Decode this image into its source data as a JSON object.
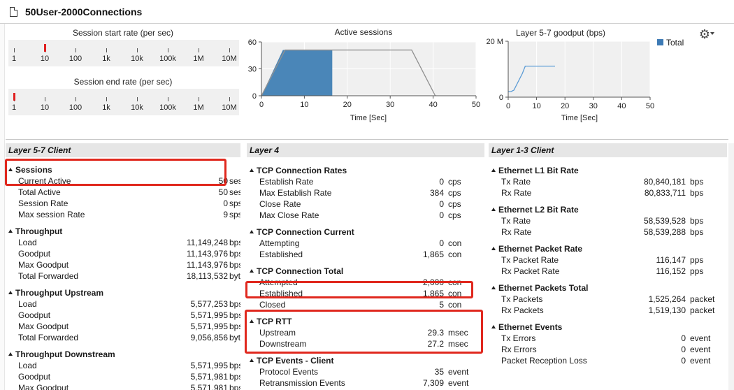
{
  "window": {
    "title": "50User-2000Connections"
  },
  "top_charts": {
    "start_rate": {
      "title": "Session start rate (per sec)",
      "ticks": [
        "1",
        "10",
        "100",
        "1k",
        "10k",
        "100k",
        "1M",
        "10M"
      ],
      "marker_at": 10
    },
    "end_rate": {
      "title": "Session end rate (per sec)",
      "ticks": [
        "1",
        "10",
        "100",
        "1k",
        "10k",
        "100k",
        "1M",
        "10M"
      ],
      "marker_at": 1
    }
  },
  "chart_data": [
    {
      "type": "area",
      "title": "Active sessions",
      "xlabel": "Time [Sec]",
      "ylabel": "",
      "xlim": [
        0,
        50
      ],
      "ylim": [
        0,
        60
      ],
      "x_ticks": [
        0,
        10,
        20,
        30,
        40,
        50
      ],
      "y_ticks": [
        0,
        30,
        60
      ],
      "outline": {
        "x": [
          0,
          5.5,
          35,
          40.5
        ],
        "y": [
          0,
          51,
          51,
          0
        ]
      },
      "filled": {
        "x": [
          0,
          5,
          16.5,
          16.5
        ],
        "y": [
          0,
          51,
          51,
          0
        ]
      },
      "grid": true,
      "colors": {
        "fill": "#4a86b8",
        "line": "#909090"
      }
    },
    {
      "type": "line",
      "title": "Layer 5-7 goodput (bps)",
      "xlabel": "Time [Sec]",
      "ylabel": "",
      "xlim": [
        0,
        50
      ],
      "ylim": [
        0,
        20
      ],
      "x_ticks": [
        0,
        10,
        20,
        30,
        40,
        50
      ],
      "y_ticks": [
        0,
        20
      ],
      "y_tick_labels": [
        "0",
        "20 M"
      ],
      "series": [
        {
          "name": "Total",
          "x": [
            0,
            1,
            2,
            3,
            4,
            5,
            6,
            7,
            8,
            9,
            10,
            11,
            12,
            13,
            14,
            15,
            16,
            16.5
          ],
          "y": [
            2.0,
            2.0,
            2.5,
            4.5,
            6.5,
            8.5,
            11.1,
            11.1,
            11.1,
            11.1,
            11.1,
            11.1,
            11.1,
            11.1,
            11.1,
            11.1,
            11.1,
            11.1
          ]
        }
      ],
      "legend": "top-right",
      "grid": true,
      "colors": {
        "line": "#5b9bd5",
        "legend": "#3d7ab5"
      }
    }
  ],
  "panels": {
    "l57": {
      "title": "Layer 5-7 Client",
      "groups": [
        {
          "title": "Sessions",
          "rows": [
            {
              "label": "Current Active",
              "value": "50",
              "unit": "sess"
            },
            {
              "label": "Total Active",
              "value": "50",
              "unit": "sess"
            },
            {
              "label": "Session Rate",
              "value": "0",
              "unit": "sps"
            },
            {
              "label": "Max session Rate",
              "value": "9",
              "unit": "sps"
            }
          ]
        },
        {
          "title": "Throughput",
          "rows": [
            {
              "label": "Load",
              "value": "11,149,248",
              "unit": "bps"
            },
            {
              "label": "Goodput",
              "value": "11,143,976",
              "unit": "bps"
            },
            {
              "label": "Max Goodput",
              "value": "11,143,976",
              "unit": "bps"
            },
            {
              "label": "Total Forwarded",
              "value": "18,113,532",
              "unit": "byte"
            }
          ]
        },
        {
          "title": "Throughput Upstream",
          "rows": [
            {
              "label": "Load",
              "value": "5,577,253",
              "unit": "bps"
            },
            {
              "label": "Goodput",
              "value": "5,571,995",
              "unit": "bps"
            },
            {
              "label": "Max Goodput",
              "value": "5,571,995",
              "unit": "bps"
            },
            {
              "label": "Total Forwarded",
              "value": "9,056,856",
              "unit": "byte"
            }
          ]
        },
        {
          "title": "Throughput Downstream",
          "rows": [
            {
              "label": "Load",
              "value": "5,571,995",
              "unit": "bps"
            },
            {
              "label": "Goodput",
              "value": "5,571,981",
              "unit": "bps"
            },
            {
              "label": "Max Goodput",
              "value": "5,571,981",
              "unit": "bps"
            }
          ]
        }
      ]
    },
    "l4": {
      "title": "Layer 4",
      "groups": [
        {
          "title": "TCP Connection Rates",
          "rows": [
            {
              "label": "Establish Rate",
              "value": "0",
              "unit": "cps"
            },
            {
              "label": "Max Establish Rate",
              "value": "384",
              "unit": "cps"
            },
            {
              "label": "Close Rate",
              "value": "0",
              "unit": "cps"
            },
            {
              "label": "Max Close Rate",
              "value": "0",
              "unit": "cps"
            }
          ]
        },
        {
          "title": "TCP Connection Current",
          "rows": [
            {
              "label": "Attempting",
              "value": "0",
              "unit": "con"
            },
            {
              "label": "Established",
              "value": "1,865",
              "unit": "con"
            }
          ]
        },
        {
          "title": "TCP Connection Total",
          "rows": [
            {
              "label": "Attempted",
              "value": "2,000",
              "unit": "con"
            },
            {
              "label": "Established",
              "value": "1,865",
              "unit": "con"
            },
            {
              "label": "Closed",
              "value": "5",
              "unit": "con"
            }
          ]
        },
        {
          "title": "TCP RTT",
          "rows": [
            {
              "label": "Upstream",
              "value": "29.3",
              "unit": "msec"
            },
            {
              "label": "Downstream",
              "value": "27.2",
              "unit": "msec"
            }
          ]
        },
        {
          "title": "TCP Events - Client",
          "rows": [
            {
              "label": "Protocol Events",
              "value": "35",
              "unit": "event"
            },
            {
              "label": "Retransmission Events",
              "value": "7,309",
              "unit": "event"
            }
          ]
        }
      ]
    },
    "l13": {
      "title": "Layer 1-3 Client",
      "groups": [
        {
          "title": "Ethernet L1 Bit Rate",
          "rows": [
            {
              "label": "Tx Rate",
              "value": "80,840,181",
              "unit": "bps"
            },
            {
              "label": "Rx Rate",
              "value": "80,833,711",
              "unit": "bps"
            }
          ]
        },
        {
          "title": "Ethernet L2 Bit Rate",
          "rows": [
            {
              "label": "Tx Rate",
              "value": "58,539,528",
              "unit": "bps"
            },
            {
              "label": "Rx Rate",
              "value": "58,539,288",
              "unit": "bps"
            }
          ]
        },
        {
          "title": "Ethernet Packet Rate",
          "rows": [
            {
              "label": "Tx Packet Rate",
              "value": "116,147",
              "unit": "pps"
            },
            {
              "label": "Rx Packet Rate",
              "value": "116,152",
              "unit": "pps"
            }
          ]
        },
        {
          "title": "Ethernet Packets Total",
          "rows": [
            {
              "label": "Tx Packets",
              "value": "1,525,264",
              "unit": "packet"
            },
            {
              "label": "Rx Packets",
              "value": "1,519,130",
              "unit": "packet"
            }
          ]
        },
        {
          "title": "Ethernet Events",
          "rows": [
            {
              "label": "Tx Errors",
              "value": "0",
              "unit": "event"
            },
            {
              "label": "Rx Errors",
              "value": "0",
              "unit": "event"
            },
            {
              "label": "Packet Reception Loss",
              "value": "0",
              "unit": "event"
            }
          ]
        }
      ]
    }
  }
}
